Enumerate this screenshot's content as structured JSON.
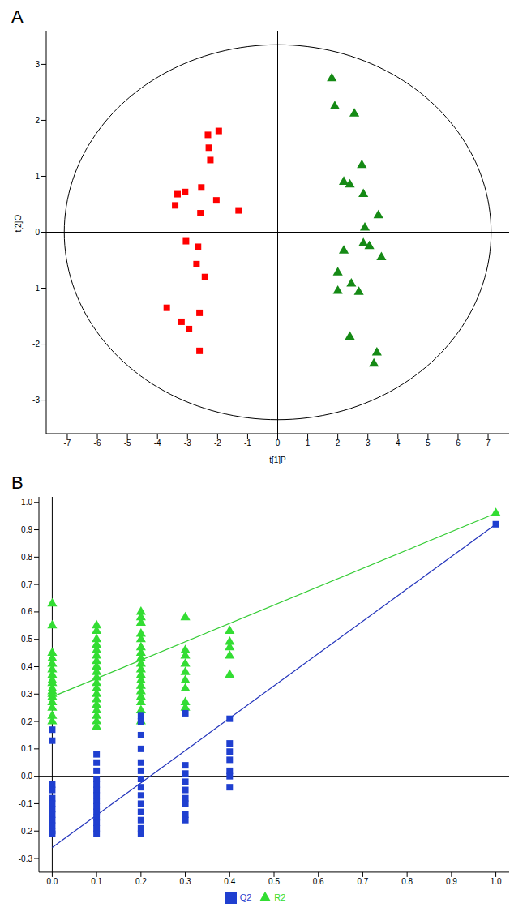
{
  "chart_data": [
    {
      "type": "scatter",
      "title": "A",
      "x_label": "t[1]P",
      "y_label": "t[2]O",
      "xlim": [
        -7.7,
        7.7
      ],
      "xticks": [
        -7,
        -6,
        -5,
        -4,
        -3,
        -2,
        -1,
        0,
        1,
        2,
        3,
        4,
        5,
        6,
        7
      ],
      "ylim": [
        -3.6,
        3.6
      ],
      "yticks": [
        -3,
        -2,
        -1,
        0,
        1,
        2,
        3
      ],
      "reference_lines": {
        "x": 0,
        "y": 0
      },
      "ellipse": {
        "rx": 7.1,
        "ry": 3.35
      },
      "series": [
        {
          "color": "#ff0000",
          "marker": "square",
          "x": [
            -1.96,
            -2.32,
            -2.29,
            -2.24,
            -2.54,
            -3.08,
            -3.33,
            -3.41,
            -2.04,
            -1.3,
            -2.57,
            -3.05,
            -2.65,
            -2.7,
            -2.42,
            -3.69,
            -2.6,
            -3.2,
            -2.95,
            -2.6
          ],
          "values": [
            1.81,
            1.74,
            1.51,
            1.29,
            0.8,
            0.72,
            0.68,
            0.48,
            0.57,
            0.39,
            0.34,
            -0.16,
            -0.26,
            -0.57,
            -0.8,
            -1.35,
            -1.44,
            -1.6,
            -1.73,
            -2.12
          ]
        },
        {
          "color": "#158a15",
          "marker": "triangle",
          "x": [
            1.8,
            1.9,
            2.55,
            2.8,
            2.2,
            2.4,
            2.85,
            3.35,
            2.9,
            2.85,
            3.05,
            3.45,
            2.2,
            2.0,
            2.0,
            2.45,
            2.7,
            2.4,
            3.3,
            3.2
          ],
          "values": [
            2.75,
            2.25,
            2.12,
            1.2,
            0.9,
            0.85,
            0.68,
            0.3,
            0.08,
            -0.2,
            -0.25,
            -0.45,
            -0.33,
            -0.72,
            -1.05,
            -0.92,
            -1.07,
            -1.87,
            -2.15,
            -2.35
          ]
        }
      ]
    },
    {
      "type": "scatter",
      "title": "B",
      "xlim": [
        -0.03,
        1.03
      ],
      "xticks": [
        {
          "value": 0,
          "label": "0.0"
        },
        {
          "value": 0.1,
          "label": "0.1"
        },
        {
          "value": 0.2,
          "label": "0.2"
        },
        {
          "value": 0.3,
          "label": "0.3"
        },
        {
          "value": 0.4,
          "label": "0.4"
        },
        {
          "value": 0.5,
          "label": "0.5"
        },
        {
          "value": 0.6,
          "label": "0.6"
        },
        {
          "value": 0.7,
          "label": "0.7"
        },
        {
          "value": 0.8,
          "label": "0.8"
        },
        {
          "value": 0.9,
          "label": "0.9"
        },
        {
          "value": 1,
          "label": "1.0"
        }
      ],
      "ylim": [
        -0.35,
        1.02
      ],
      "yticks": [
        {
          "value": -0.3,
          "label": "-0.3"
        },
        {
          "value": -0.2,
          "label": "-0.2"
        },
        {
          "value": -0.1,
          "label": "-0.1"
        },
        {
          "value": 0,
          "label": "-0.0"
        },
        {
          "value": 0.1,
          "label": "0.1"
        },
        {
          "value": 0.2,
          "label": "0.2"
        },
        {
          "value": 0.3,
          "label": "0.3"
        },
        {
          "value": 0.4,
          "label": "0.4"
        },
        {
          "value": 0.5,
          "label": "0.5"
        },
        {
          "value": 0.6,
          "label": "0.6"
        },
        {
          "value": 0.7,
          "label": "0.7"
        },
        {
          "value": 0.8,
          "label": "0.8"
        },
        {
          "value": 0.9,
          "label": "0.9"
        },
        {
          "value": 1,
          "label": "1.0"
        }
      ],
      "reference_lines": {
        "x": 0,
        "y": 0
      },
      "legend": "bottom",
      "series": [
        {
          "name": "R2",
          "color": "#33dd33",
          "marker": "triangle",
          "x": [
            0,
            0,
            0,
            0,
            0,
            0,
            0,
            0,
            0,
            0,
            0,
            0,
            0,
            0,
            0,
            0,
            0,
            0.1,
            0.1,
            0.1,
            0.1,
            0.1,
            0.1,
            0.1,
            0.1,
            0.1,
            0.1,
            0.1,
            0.1,
            0.1,
            0.1,
            0.1,
            0.1,
            0.1,
            0.1,
            0.1,
            0.2,
            0.2,
            0.2,
            0.2,
            0.2,
            0.2,
            0.2,
            0.2,
            0.2,
            0.2,
            0.2,
            0.2,
            0.2,
            0.2,
            0.2,
            0.2,
            0.2,
            0.2,
            0.3,
            0.3,
            0.3,
            0.3,
            0.3,
            0.3,
            0.3,
            0.3,
            0.3,
            0.4,
            0.4,
            0.4,
            0.4,
            0.4,
            1
          ],
          "values": [
            0.63,
            0.55,
            0.45,
            0.43,
            0.41,
            0.39,
            0.37,
            0.35,
            0.34,
            0.32,
            0.31,
            0.3,
            0.29,
            0.27,
            0.25,
            0.22,
            0.2,
            0.55,
            0.53,
            0.5,
            0.48,
            0.46,
            0.44,
            0.42,
            0.4,
            0.38,
            0.36,
            0.34,
            0.32,
            0.3,
            0.28,
            0.26,
            0.24,
            0.22,
            0.2,
            0.18,
            0.6,
            0.58,
            0.56,
            0.52,
            0.5,
            0.47,
            0.45,
            0.43,
            0.41,
            0.39,
            0.37,
            0.35,
            0.33,
            0.31,
            0.29,
            0.27,
            0.24,
            0.2,
            0.58,
            0.46,
            0.44,
            0.41,
            0.38,
            0.35,
            0.32,
            0.27,
            0.25,
            0.53,
            0.49,
            0.47,
            0.44,
            0.37,
            0.96
          ]
        },
        {
          "name": "Q2",
          "color": "#1f3fd0",
          "marker": "square",
          "x": [
            0,
            0,
            0,
            0,
            0,
            0,
            0,
            0,
            0,
            0,
            0,
            0,
            0.1,
            0.1,
            0.1,
            0.1,
            0.1,
            0.1,
            0.1,
            0.1,
            0.1,
            0.1,
            0.1,
            0.1,
            0.1,
            0.1,
            0.2,
            0.2,
            0.2,
            0.2,
            0.2,
            0.2,
            0.2,
            0.2,
            0.2,
            0.2,
            0.2,
            0.2,
            0.2,
            0.2,
            0.3,
            0.3,
            0.3,
            0.3,
            0.3,
            0.3,
            0.3,
            0.3,
            0.3,
            0.4,
            0.4,
            0.4,
            0.4,
            0.4,
            0.4,
            0.4,
            1
          ],
          "values": [
            0.17,
            0.13,
            -0.03,
            -0.05,
            -0.08,
            -0.1,
            -0.12,
            -0.14,
            -0.16,
            -0.18,
            -0.2,
            -0.21,
            0.08,
            0.05,
            0.02,
            -0.01,
            -0.03,
            -0.05,
            -0.07,
            -0.09,
            -0.11,
            -0.13,
            -0.15,
            -0.17,
            -0.19,
            -0.21,
            0.22,
            0.2,
            0.15,
            0.1,
            0.05,
            0.02,
            -0.01,
            -0.04,
            -0.07,
            -0.1,
            -0.13,
            -0.16,
            -0.19,
            -0.21,
            0.23,
            0.04,
            0.01,
            -0.02,
            -0.05,
            -0.08,
            -0.1,
            -0.14,
            -0.16,
            0.21,
            0.12,
            0.09,
            0.06,
            0.02,
            0,
            -0.04,
            0.92
          ]
        }
      ],
      "lines": [
        {
          "type": "line",
          "color": "#33cc33",
          "x": [
            0,
            1
          ],
          "values": [
            0.29,
            0.96
          ]
        },
        {
          "type": "line",
          "color": "#2233bb",
          "x": [
            0,
            1
          ],
          "values": [
            -0.26,
            0.92
          ]
        }
      ]
    }
  ]
}
